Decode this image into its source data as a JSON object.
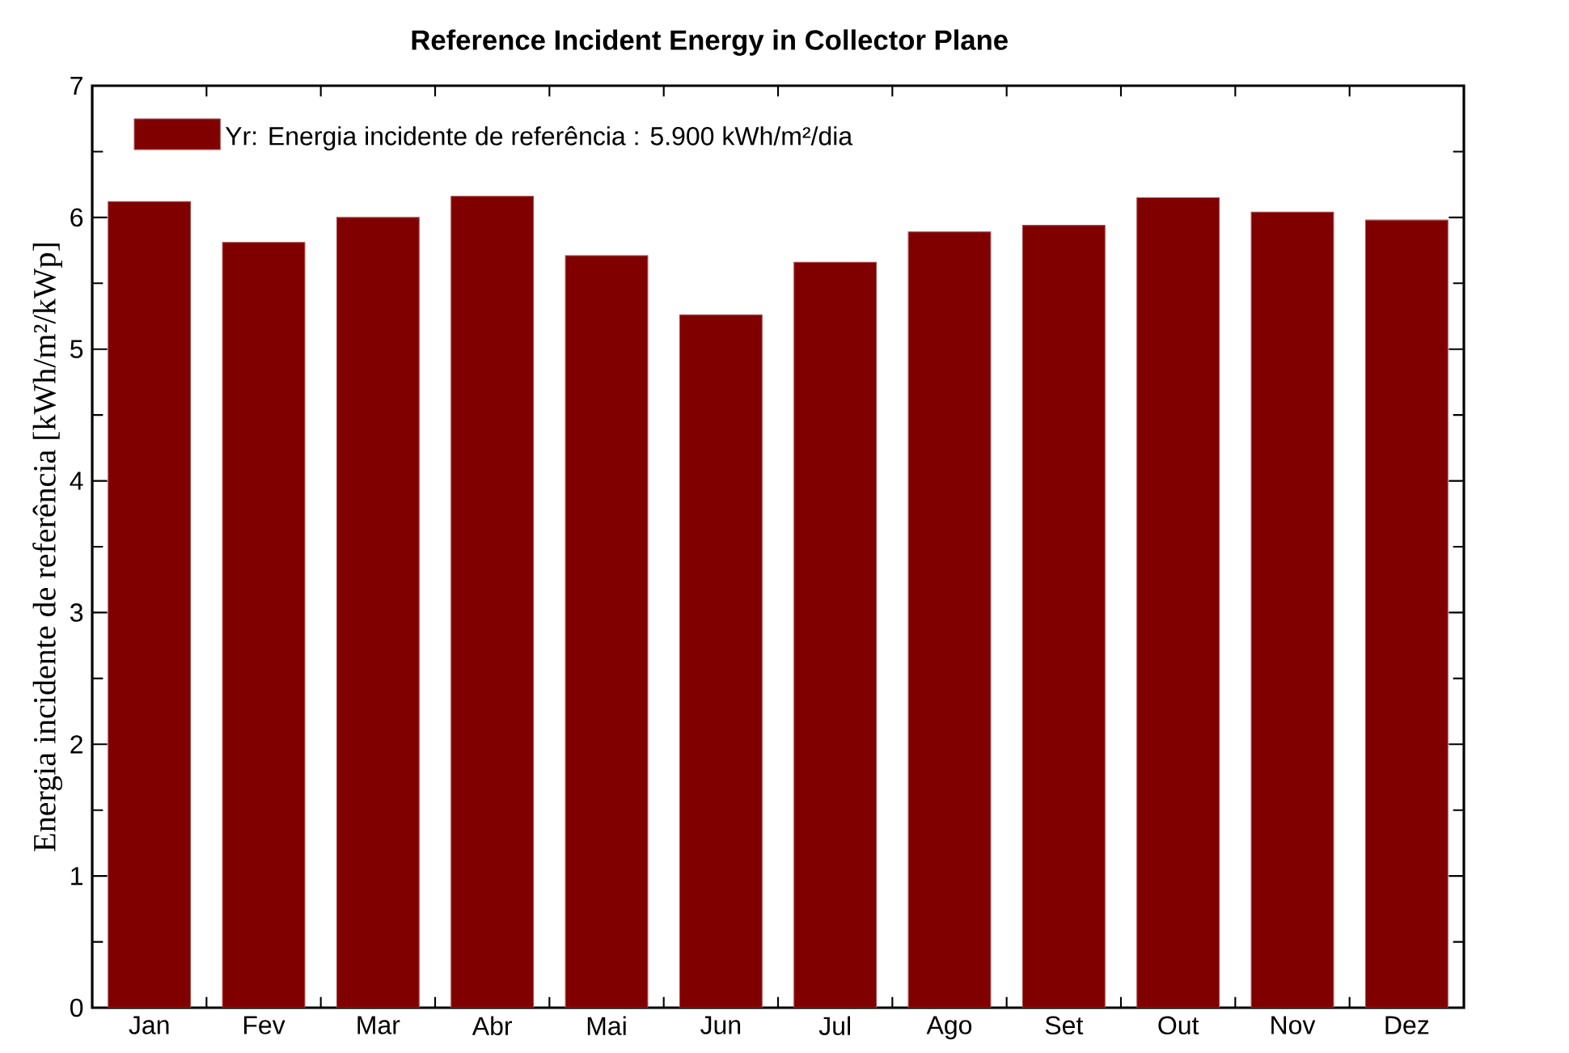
{
  "chart_data": {
    "type": "bar",
    "title": "Reference Incident Energy in Collector Plane",
    "ylabel": "Energia incidente de referência [kWh/m²/kWp]",
    "categories": [
      "Jan",
      "Fev",
      "Mar",
      "Abr",
      "Mai",
      "Jun",
      "Jul",
      "Ago",
      "Set",
      "Out",
      "Nov",
      "Dez"
    ],
    "series": [
      {
        "name": "Yr: Energia incidente de referência :  5.900 kWh/m²/dia",
        "color": "#800000",
        "values": [
          6.12,
          5.81,
          6.0,
          6.16,
          5.71,
          5.26,
          5.66,
          5.89,
          5.94,
          6.15,
          6.04,
          5.98
        ]
      }
    ],
    "ylim": [
      0,
      7
    ],
    "yticks": [
      0,
      1,
      2,
      3,
      4,
      5,
      6,
      7
    ],
    "legend": "top left",
    "grid": false
  }
}
